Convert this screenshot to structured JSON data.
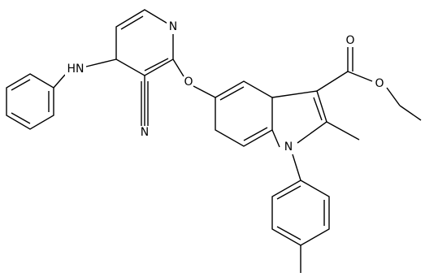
{
  "atoms": [
    {
      "label": "N"
    },
    {
      "label": "HN"
    },
    {
      "label": "O"
    },
    {
      "label": "N"
    },
    {
      "label": "O"
    },
    {
      "label": "O"
    },
    {
      "label": "N"
    }
  ]
}
